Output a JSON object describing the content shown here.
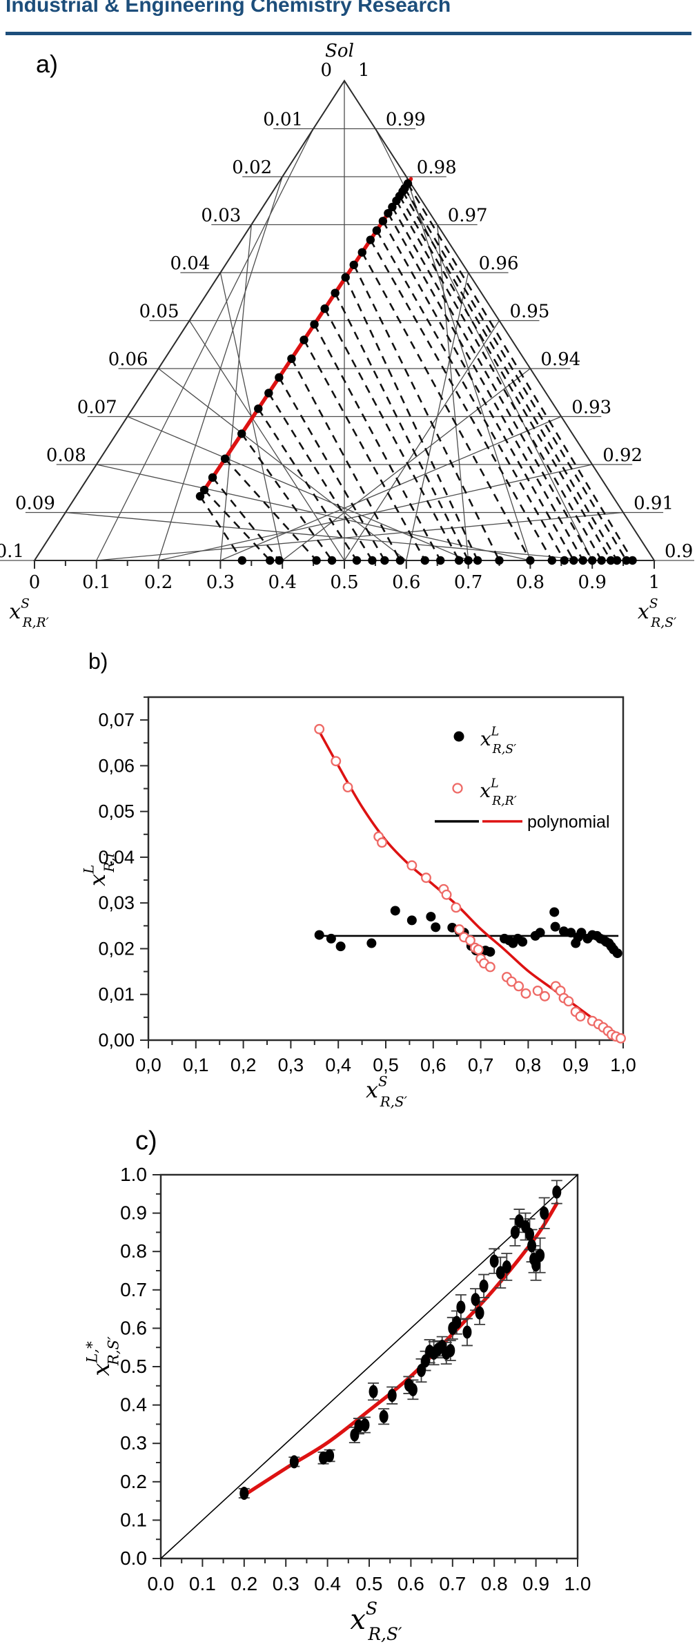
{
  "header": {
    "journal_title": "Industrial & Engineering Chemistry Research",
    "accent_color": "#1d4e7b"
  },
  "colors": {
    "red_line": "#dd1212",
    "red_open": "#ee6a66",
    "black": "#000000"
  },
  "chart_data": [
    {
      "id": "a",
      "type": "ternary-phase-diagram",
      "panel_label": "a)",
      "apex": {
        "title": "Sol",
        "left_tick": "0",
        "right_tick": "1"
      },
      "left_edge_ticks": [
        "0.01",
        "0.02",
        "0.03",
        "0.04",
        "0.05",
        "0.06",
        "0.07",
        "0.08",
        "0.09"
      ],
      "left_corner_tick": "0.1",
      "right_edge_ticks": [
        "0.99",
        "0.98",
        "0.97",
        "0.96",
        "0.95",
        "0.94",
        "0.93",
        "0.92",
        "0.91"
      ],
      "right_corner_tick": "0.9",
      "bottom_ticks": [
        "0",
        "0.1",
        "0.2",
        "0.3",
        "0.4",
        "0.5",
        "0.6",
        "0.7",
        "0.8",
        "0.9",
        "1"
      ],
      "axis_label_left": {
        "base": "x",
        "sup": "S",
        "sub": "R,R′"
      },
      "axis_label_right": {
        "base": "x",
        "sup": "S",
        "sub": "R,S′"
      },
      "binodal_color": "#dd1212",
      "tie_line_pairs_t_u": [
        [
          0.0,
          0.335
        ],
        [
          0.02,
          0.38
        ],
        [
          0.06,
          0.395
        ],
        [
          0.12,
          0.455
        ],
        [
          0.2,
          0.48
        ],
        [
          0.28,
          0.52
        ],
        [
          0.33,
          0.545
        ],
        [
          0.38,
          0.565
        ],
        [
          0.44,
          0.59
        ],
        [
          0.5,
          0.63
        ],
        [
          0.55,
          0.655
        ],
        [
          0.6,
          0.685
        ],
        [
          0.65,
          0.7
        ],
        [
          0.7,
          0.715
        ],
        [
          0.74,
          0.75
        ],
        [
          0.78,
          0.8
        ],
        [
          0.82,
          0.835
        ],
        [
          0.85,
          0.855
        ],
        [
          0.88,
          0.87
        ],
        [
          0.905,
          0.885
        ],
        [
          0.925,
          0.9
        ],
        [
          0.945,
          0.915
        ],
        [
          0.96,
          0.93
        ],
        [
          0.975,
          0.94
        ],
        [
          0.985,
          0.955
        ],
        [
          1.0,
          0.965
        ]
      ]
    },
    {
      "id": "b",
      "type": "scatter",
      "panel_label": "b)",
      "x_ticks": [
        "0,0",
        "0,1",
        "0,2",
        "0,3",
        "0,4",
        "0,5",
        "0,6",
        "0,7",
        "0,8",
        "0,9",
        "1,0"
      ],
      "y_ticks": [
        "0,00",
        "0,01",
        "0,02",
        "0,03",
        "0,04",
        "0,05",
        "0,06",
        "0,07"
      ],
      "xlim": [
        0,
        1
      ],
      "ylim": [
        0,
        0.075
      ],
      "xlabel": {
        "base": "x",
        "sup": "S",
        "sub": "R,S′"
      },
      "ylabel": {
        "base": "x",
        "sup": "L",
        "sub": "R,i"
      },
      "legend": [
        {
          "marker": "filled-circle",
          "color": "#000000",
          "label": {
            "base": "x",
            "sup": "L",
            "sub": "R,S′"
          }
        },
        {
          "marker": "open-circle",
          "color": "#ee6a66",
          "label": {
            "base": "x",
            "sup": "L",
            "sub": "R,R′"
          }
        },
        {
          "marker": "dual-line",
          "colors": [
            "#000000",
            "#dd1212"
          ],
          "label_text": "polynomial"
        }
      ],
      "series": [
        {
          "name": "x_L_R_Sprime",
          "marker": "filled-circle",
          "color": "#000000",
          "points": [
            [
              0.36,
              0.023
            ],
            [
              0.385,
              0.0222
            ],
            [
              0.405,
              0.0205
            ],
            [
              0.47,
              0.0212
            ],
            [
              0.52,
              0.0283
            ],
            [
              0.555,
              0.0262
            ],
            [
              0.595,
              0.027
            ],
            [
              0.605,
              0.0247
            ],
            [
              0.64,
              0.0246
            ],
            [
              0.655,
              0.0238
            ],
            [
              0.665,
              0.0235
            ],
            [
              0.68,
              0.0206
            ],
            [
              0.69,
              0.0196
            ],
            [
              0.7,
              0.0195
            ],
            [
              0.71,
              0.0196
            ],
            [
              0.72,
              0.0193
            ],
            [
              0.75,
              0.0222
            ],
            [
              0.76,
              0.0218
            ],
            [
              0.768,
              0.0212
            ],
            [
              0.778,
              0.0222
            ],
            [
              0.788,
              0.0215
            ],
            [
              0.815,
              0.0228
            ],
            [
              0.825,
              0.0235
            ],
            [
              0.855,
              0.028
            ],
            [
              0.857,
              0.0248
            ],
            [
              0.875,
              0.0238
            ],
            [
              0.89,
              0.0235
            ],
            [
              0.9,
              0.0212
            ],
            [
              0.905,
              0.0225
            ],
            [
              0.912,
              0.0235
            ],
            [
              0.925,
              0.0222
            ],
            [
              0.935,
              0.023
            ],
            [
              0.945,
              0.0228
            ],
            [
              0.952,
              0.0222
            ],
            [
              0.958,
              0.022
            ],
            [
              0.964,
              0.0215
            ],
            [
              0.97,
              0.0212
            ],
            [
              0.975,
              0.0205
            ],
            [
              0.98,
              0.0198
            ],
            [
              0.988,
              0.019
            ]
          ]
        },
        {
          "name": "x_L_R_Rprime",
          "marker": "open-circle",
          "color": "#ee6a66",
          "points": [
            [
              0.36,
              0.068
            ],
            [
              0.395,
              0.061
            ],
            [
              0.42,
              0.0553
            ],
            [
              0.485,
              0.0445
            ],
            [
              0.492,
              0.0432
            ],
            [
              0.555,
              0.0382
            ],
            [
              0.585,
              0.0355
            ],
            [
              0.622,
              0.033
            ],
            [
              0.628,
              0.0318
            ],
            [
              0.648,
              0.029
            ],
            [
              0.655,
              0.0242
            ],
            [
              0.665,
              0.0225
            ],
            [
              0.678,
              0.0218
            ],
            [
              0.688,
              0.0202
            ],
            [
              0.695,
              0.0198
            ],
            [
              0.7,
              0.0178
            ],
            [
              0.707,
              0.0168
            ],
            [
              0.72,
              0.016
            ],
            [
              0.755,
              0.0138
            ],
            [
              0.765,
              0.0128
            ],
            [
              0.78,
              0.0118
            ],
            [
              0.795,
              0.0102
            ],
            [
              0.82,
              0.0108
            ],
            [
              0.835,
              0.0096
            ],
            [
              0.858,
              0.0118
            ],
            [
              0.868,
              0.0108
            ],
            [
              0.875,
              0.0092
            ],
            [
              0.885,
              0.0085
            ],
            [
              0.9,
              0.0062
            ],
            [
              0.91,
              0.0052
            ],
            [
              0.935,
              0.0042
            ],
            [
              0.948,
              0.0035
            ],
            [
              0.958,
              0.0028
            ],
            [
              0.968,
              0.002
            ],
            [
              0.976,
              0.0012
            ],
            [
              0.985,
              0.0008
            ],
            [
              0.995,
              0.0004
            ]
          ]
        }
      ],
      "fit_lines": [
        {
          "name": "polynomial-black",
          "color": "#000000",
          "points": [
            [
              0.36,
              0.0228
            ],
            [
              0.99,
              0.0228
            ]
          ]
        },
        {
          "name": "polynomial-red",
          "color": "#dd1212",
          "points": [
            [
              0.36,
              0.0675
            ],
            [
              0.4,
              0.06
            ],
            [
              0.45,
              0.051
            ],
            [
              0.5,
              0.0437
            ],
            [
              0.55,
              0.0383
            ],
            [
              0.6,
              0.034
            ],
            [
              0.65,
              0.0295
            ],
            [
              0.7,
              0.0243
            ],
            [
              0.75,
              0.0198
            ],
            [
              0.8,
              0.0151
            ],
            [
              0.85,
              0.0113
            ],
            [
              0.9,
              0.0075
            ],
            [
              0.95,
              0.0037
            ],
            [
              0.995,
              0.0005
            ]
          ]
        }
      ]
    },
    {
      "id": "c",
      "type": "scatter-errorbar",
      "panel_label": "c)",
      "x_ticks": [
        "0.0",
        "0.1",
        "0.2",
        "0.3",
        "0.4",
        "0.5",
        "0.6",
        "0.7",
        "0.8",
        "0.9",
        "1.0"
      ],
      "y_ticks": [
        "0.0",
        "0.1",
        "0.2",
        "0.3",
        "0.4",
        "0.5",
        "0.6",
        "0.7",
        "0.8",
        "0.9",
        "1.0"
      ],
      "xlim": [
        0,
        1
      ],
      "ylim": [
        0,
        1
      ],
      "xlabel": {
        "base": "x",
        "sup": "S",
        "sub": "R,S′"
      },
      "ylabel": {
        "base": "x",
        "sup": "L,*",
        "sub": "R,S′"
      },
      "diagonal": true,
      "fit_line": {
        "color": "#dd1212",
        "points": [
          [
            0.2,
            0.165
          ],
          [
            0.3,
            0.235
          ],
          [
            0.4,
            0.302
          ],
          [
            0.5,
            0.386
          ],
          [
            0.6,
            0.475
          ],
          [
            0.7,
            0.585
          ],
          [
            0.8,
            0.702
          ],
          [
            0.9,
            0.838
          ],
          [
            0.95,
            0.925
          ]
        ]
      },
      "points_xye": [
        [
          0.2,
          0.17,
          0.012
        ],
        [
          0.32,
          0.252,
          0.012
        ],
        [
          0.39,
          0.262,
          0.015
        ],
        [
          0.405,
          0.268,
          0.015
        ],
        [
          0.465,
          0.322,
          0.02
        ],
        [
          0.475,
          0.345,
          0.02
        ],
        [
          0.49,
          0.348,
          0.02
        ],
        [
          0.51,
          0.435,
          0.022
        ],
        [
          0.535,
          0.37,
          0.02
        ],
        [
          0.555,
          0.425,
          0.022
        ],
        [
          0.595,
          0.452,
          0.022
        ],
        [
          0.605,
          0.44,
          0.025
        ],
        [
          0.625,
          0.49,
          0.03
        ],
        [
          0.635,
          0.515,
          0.025
        ],
        [
          0.645,
          0.54,
          0.03
        ],
        [
          0.655,
          0.535,
          0.03
        ],
        [
          0.665,
          0.545,
          0.022
        ],
        [
          0.675,
          0.553,
          0.025
        ],
        [
          0.685,
          0.535,
          0.028
        ],
        [
          0.695,
          0.542,
          0.026
        ],
        [
          0.7,
          0.6,
          0.028
        ],
        [
          0.71,
          0.615,
          0.03
        ],
        [
          0.72,
          0.655,
          0.032
        ],
        [
          0.735,
          0.59,
          0.035
        ],
        [
          0.755,
          0.675,
          0.028
        ],
        [
          0.765,
          0.64,
          0.03
        ],
        [
          0.775,
          0.71,
          0.03
        ],
        [
          0.8,
          0.775,
          0.032
        ],
        [
          0.815,
          0.745,
          0.04
        ],
        [
          0.83,
          0.76,
          0.035
        ],
        [
          0.85,
          0.85,
          0.035
        ],
        [
          0.86,
          0.88,
          0.03
        ],
        [
          0.875,
          0.865,
          0.035
        ],
        [
          0.885,
          0.845,
          0.04
        ],
        [
          0.89,
          0.815,
          0.042
        ],
        [
          0.895,
          0.78,
          0.035
        ],
        [
          0.9,
          0.765,
          0.04
        ],
        [
          0.91,
          0.79,
          0.045
        ],
        [
          0.92,
          0.9,
          0.04
        ],
        [
          0.95,
          0.955,
          0.03
        ]
      ]
    }
  ]
}
